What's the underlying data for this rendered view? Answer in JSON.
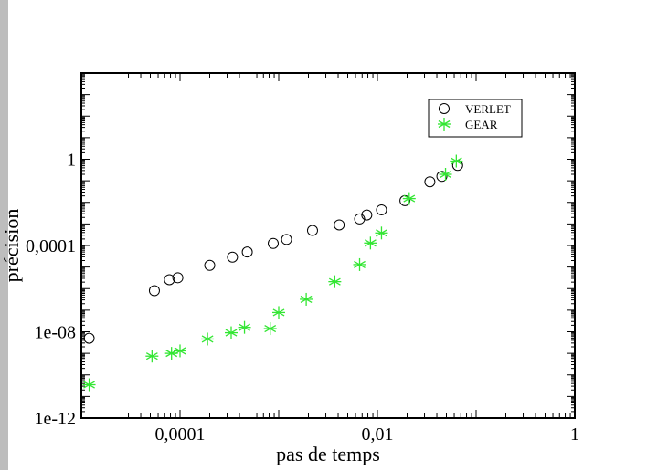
{
  "chart_data": {
    "type": "scatter",
    "title": "",
    "xlabel": "pas de temps",
    "ylabel": "précision",
    "xscale": "log",
    "yscale": "log",
    "xlim": [
      1e-05,
      1
    ],
    "ylim": [
      1e-12,
      10000
    ],
    "x_ticks": [
      {
        "value": 0.0001,
        "label": "0,0001"
      },
      {
        "value": 0.01,
        "label": "0,01"
      },
      {
        "value": 1,
        "label": "1"
      }
    ],
    "y_ticks": [
      {
        "value": 1e-12,
        "label": "1e-12"
      },
      {
        "value": 1e-08,
        "label": "1e-08"
      },
      {
        "value": 0.0001,
        "label": "0,0001"
      },
      {
        "value": 1,
        "label": "1"
      }
    ],
    "legend_position": "top-right",
    "series": [
      {
        "name": "VERLET",
        "marker": "circle",
        "color": "#000000",
        "points": [
          [
            1.2e-05,
            5e-09
          ],
          [
            5.5e-05,
            8e-07
          ],
          [
            7.8e-05,
            2.6e-06
          ],
          [
            9.5e-05,
            3.2e-06
          ],
          [
            0.0002,
            1.2e-05
          ],
          [
            0.00034,
            2.9e-05
          ],
          [
            0.00048,
            5e-05
          ],
          [
            0.00088,
            0.000125
          ],
          [
            0.0012,
            0.00019
          ],
          [
            0.0022,
            0.0005
          ],
          [
            0.0041,
            0.0009
          ],
          [
            0.0066,
            0.0017
          ],
          [
            0.0078,
            0.0026
          ],
          [
            0.011,
            0.0045
          ],
          [
            0.019,
            0.012
          ],
          [
            0.034,
            0.09
          ],
          [
            0.045,
            0.16
          ],
          [
            0.065,
            0.52
          ]
        ]
      },
      {
        "name": "GEAR",
        "marker": "asterisk",
        "color": "#33e633",
        "points": [
          [
            1.2e-05,
            3.5e-11
          ],
          [
            5.2e-05,
            7.4e-10
          ],
          [
            8.2e-05,
            1e-09
          ],
          [
            0.0001,
            1.3e-09
          ],
          [
            0.00019,
            4.6e-09
          ],
          [
            0.00033,
            9e-09
          ],
          [
            0.00045,
            1.6e-08
          ],
          [
            0.00082,
            1.4e-08
          ],
          [
            0.001,
            7.8e-08
          ],
          [
            0.0019,
            3.2e-07
          ],
          [
            0.0037,
            2.1e-06
          ],
          [
            0.0066,
            1.3e-05
          ],
          [
            0.0085,
            0.00013
          ],
          [
            0.011,
            0.00038
          ],
          [
            0.021,
            0.015
          ],
          [
            0.049,
            0.2
          ],
          [
            0.063,
            0.82
          ]
        ]
      }
    ]
  }
}
